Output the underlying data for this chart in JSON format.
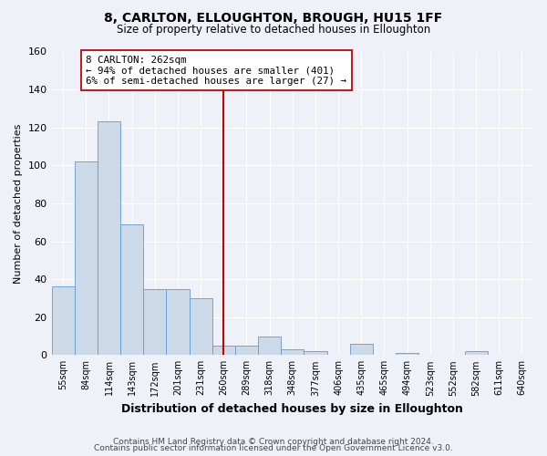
{
  "title": "8, CARLTON, ELLOUGHTON, BROUGH, HU15 1FF",
  "subtitle": "Size of property relative to detached houses in Elloughton",
  "xlabel": "Distribution of detached houses by size in Elloughton",
  "ylabel": "Number of detached properties",
  "bar_labels": [
    "55sqm",
    "84sqm",
    "114sqm",
    "143sqm",
    "172sqm",
    "201sqm",
    "231sqm",
    "260sqm",
    "289sqm",
    "318sqm",
    "348sqm",
    "377sqm",
    "406sqm",
    "435sqm",
    "465sqm",
    "494sqm",
    "523sqm",
    "552sqm",
    "582sqm",
    "611sqm",
    "640sqm"
  ],
  "bar_values": [
    36,
    102,
    123,
    69,
    35,
    35,
    30,
    5,
    5,
    10,
    3,
    2,
    0,
    6,
    0,
    1,
    0,
    0,
    2,
    0,
    0
  ],
  "bar_color": "#ccd9e8",
  "bar_edge_color": "#6699cc",
  "vline_x_idx": 7,
  "vline_color": "#cc0000",
  "annotation_text": "8 CARLTON: 262sqm\n← 94% of detached houses are smaller (401)\n6% of semi-detached houses are larger (27) →",
  "annotation_box_color": "#ffffff",
  "annotation_box_edge": "#cc0000",
  "ylim": [
    0,
    160
  ],
  "yticks": [
    0,
    20,
    40,
    60,
    80,
    100,
    120,
    140,
    160
  ],
  "background_color": "#eef2f8",
  "grid_color": "#ffffff",
  "footer_line1": "Contains HM Land Registry data © Crown copyright and database right 2024.",
  "footer_line2": "Contains public sector information licensed under the Open Government Licence v3.0."
}
